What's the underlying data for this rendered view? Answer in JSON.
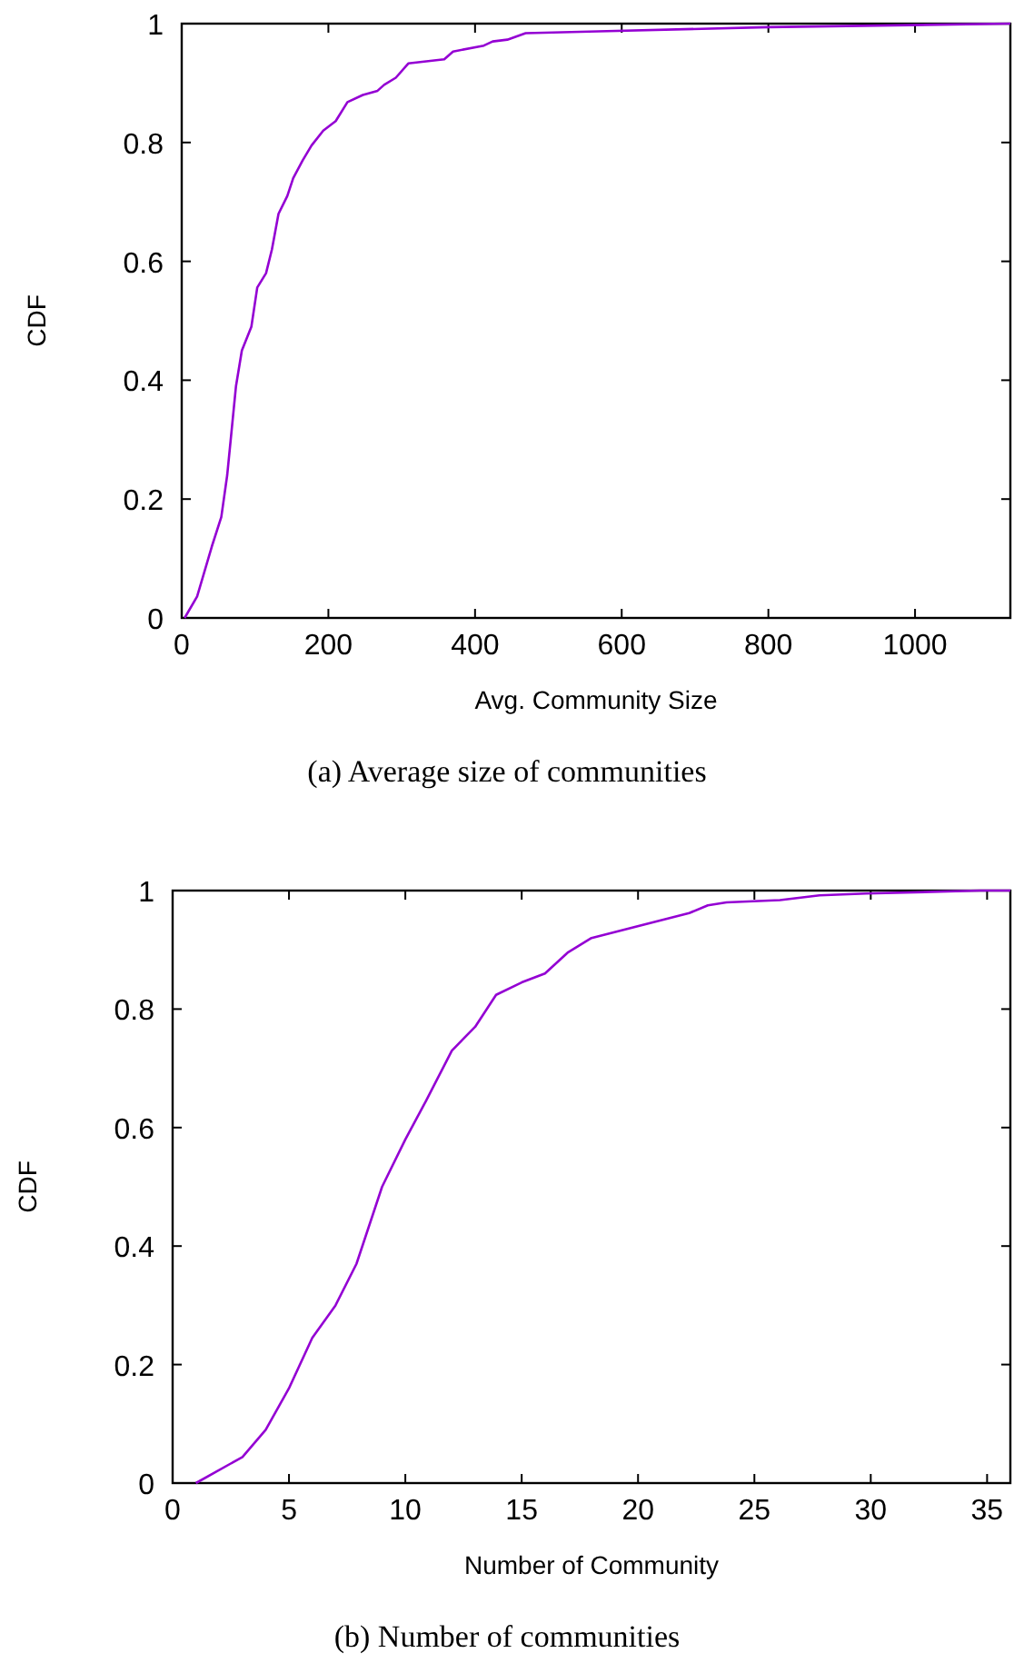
{
  "chart_data": [
    {
      "type": "line",
      "xlabel": "Avg. Community Size",
      "ylabel": "CDF",
      "annotations": [
        "(a) Average size of communities"
      ],
      "xlim": [
        0,
        1130
      ],
      "ylim": [
        0,
        1
      ],
      "xticks": [
        0,
        200,
        400,
        600,
        800,
        1000
      ],
      "yticks": [
        0,
        0.2,
        0.4,
        0.6,
        0.8,
        1
      ],
      "series": [
        {
          "color": "#9400d3",
          "x": [
            4,
            21,
            41,
            54,
            62,
            74,
            82,
            95,
            103,
            115,
            123,
            132,
            144,
            152,
            165,
            177,
            193,
            210,
            226,
            247,
            267,
            276,
            292,
            309,
            358,
            370,
            412,
            424,
            444,
            469,
            568,
            800,
            1130
          ],
          "values": [
            0,
            0.036,
            0.12,
            0.17,
            0.24,
            0.39,
            0.45,
            0.49,
            0.556,
            0.58,
            0.62,
            0.68,
            0.71,
            0.74,
            0.77,
            0.795,
            0.82,
            0.836,
            0.868,
            0.88,
            0.887,
            0.897,
            0.909,
            0.933,
            0.94,
            0.953,
            0.963,
            0.97,
            0.973,
            0.984,
            0.987,
            0.994,
            1
          ]
        }
      ]
    },
    {
      "type": "line",
      "xlabel": "Number of Community",
      "ylabel": "CDF",
      "annotations": [
        "(b) Number of communities"
      ],
      "xlim": [
        0,
        36
      ],
      "ylim": [
        0,
        1
      ],
      "xticks": [
        0,
        5,
        10,
        15,
        20,
        25,
        30,
        35
      ],
      "yticks": [
        0,
        0.2,
        0.4,
        0.6,
        0.8,
        1
      ],
      "series": [
        {
          "color": "#9400d3",
          "x": [
            1,
            3,
            4,
            5,
            6,
            7,
            7.9,
            9,
            10,
            10.9,
            12,
            13,
            13.9,
            15,
            16,
            17,
            18,
            22.2,
            23,
            23.8,
            26.1,
            27.8,
            29.8,
            34.7,
            36
          ],
          "values": [
            0,
            0.044,
            0.09,
            0.16,
            0.245,
            0.3,
            0.37,
            0.5,
            0.58,
            0.646,
            0.73,
            0.77,
            0.824,
            0.845,
            0.86,
            0.896,
            0.92,
            0.962,
            0.975,
            0.98,
            0.984,
            0.992,
            0.995,
            1,
            1
          ]
        }
      ]
    }
  ]
}
